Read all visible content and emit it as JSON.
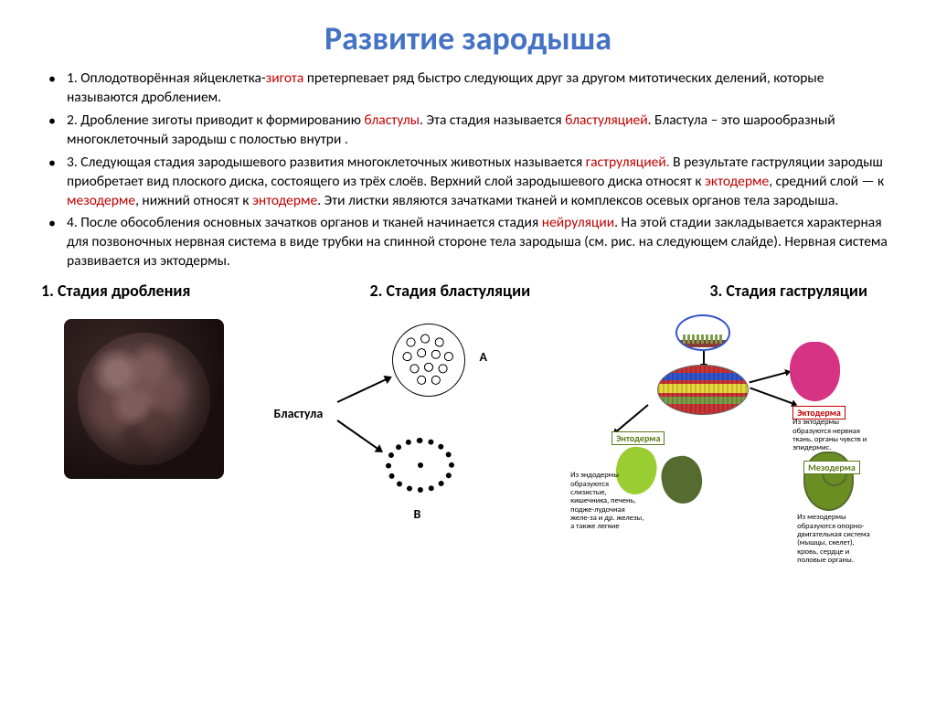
{
  "title": "Развитие зародыша",
  "title_color": "#4472c4",
  "highlight_color": "#c00000",
  "bullets": {
    "b1a": "1. Оплодотворённая яйцеклетка-",
    "b1_hl": "зигота",
    "b1b": " претерпевает ряд быстро следующих друг за другом митотических делений, которые называются дроблением.",
    "b2a": "2. Дробление зиготы приводит к формированию ",
    "b2_hl1": "бластулы",
    "b2b": ". Эта стадия называется ",
    "b2_hl2": "бластуляцией",
    "b2c": ". Бластула – это шарообразный  многоклеточный зародыш с полостью внутри .",
    "b3a": "3. Следующая стадия зародышевого развития многоклеточных животных  называется ",
    "b3_hl1": "гаструляцией.",
    "b3b": " В результате гаструляции зародыш приобретает вид плоского диска, состоящего из трёх слоёв. Верхний слой зародышевого диска относят к ",
    "b3_hl2": "эктодерме",
    "b3c": ", средний слой — к ",
    "b3_hl3": "мезодерме",
    "b3d": ", нижний относят к ",
    "b3_hl4": "энтодерме",
    "b3e": ". Эти листки являются зачатками тканей и комплексов осевых органов тела зародыша.",
    "b4a": "4. После обособления основных зачатков органов и тканей начинается стадия ",
    "b4_hl": "нейруляции",
    "b4b": ". На этой стадии закладывается характерная для позвоночных нервная система в виде трубки  на спинной стороне тела зародыша (см. рис. на следующем слайде). Нервная система развивается из эктодермы."
  },
  "stages": {
    "s1": "1. Стадия дробления",
    "s2": "2. Стадия бластуляции",
    "s3": "3. Стадия гаструляции"
  },
  "diagram2": {
    "label": "Бластула",
    "A": "А",
    "B": "В"
  },
  "diagram3": {
    "ecto_label": "Эктодерма",
    "meso_label": "Мезодерма",
    "endo_label": "Энтодерма",
    "ecto_desc": "Из эктодермы образуются нервная ткань, органы чувств и эпидермис.",
    "meso_desc": "Из мезодермы образуются опорно-двигательная система (мышцы, скелет), кровь, сердце и половые органы.",
    "endo_desc": "Из эндодермы образуются слизистые, кишечника, печень, подже-лудочная желе-за и др. железы, а также легкие",
    "colors": {
      "ecto": "#d63384",
      "meso": "#6b8e23",
      "endo": "#9acd32",
      "ecto_border": "#c00000",
      "meso_border": "#5a7a1a"
    }
  }
}
